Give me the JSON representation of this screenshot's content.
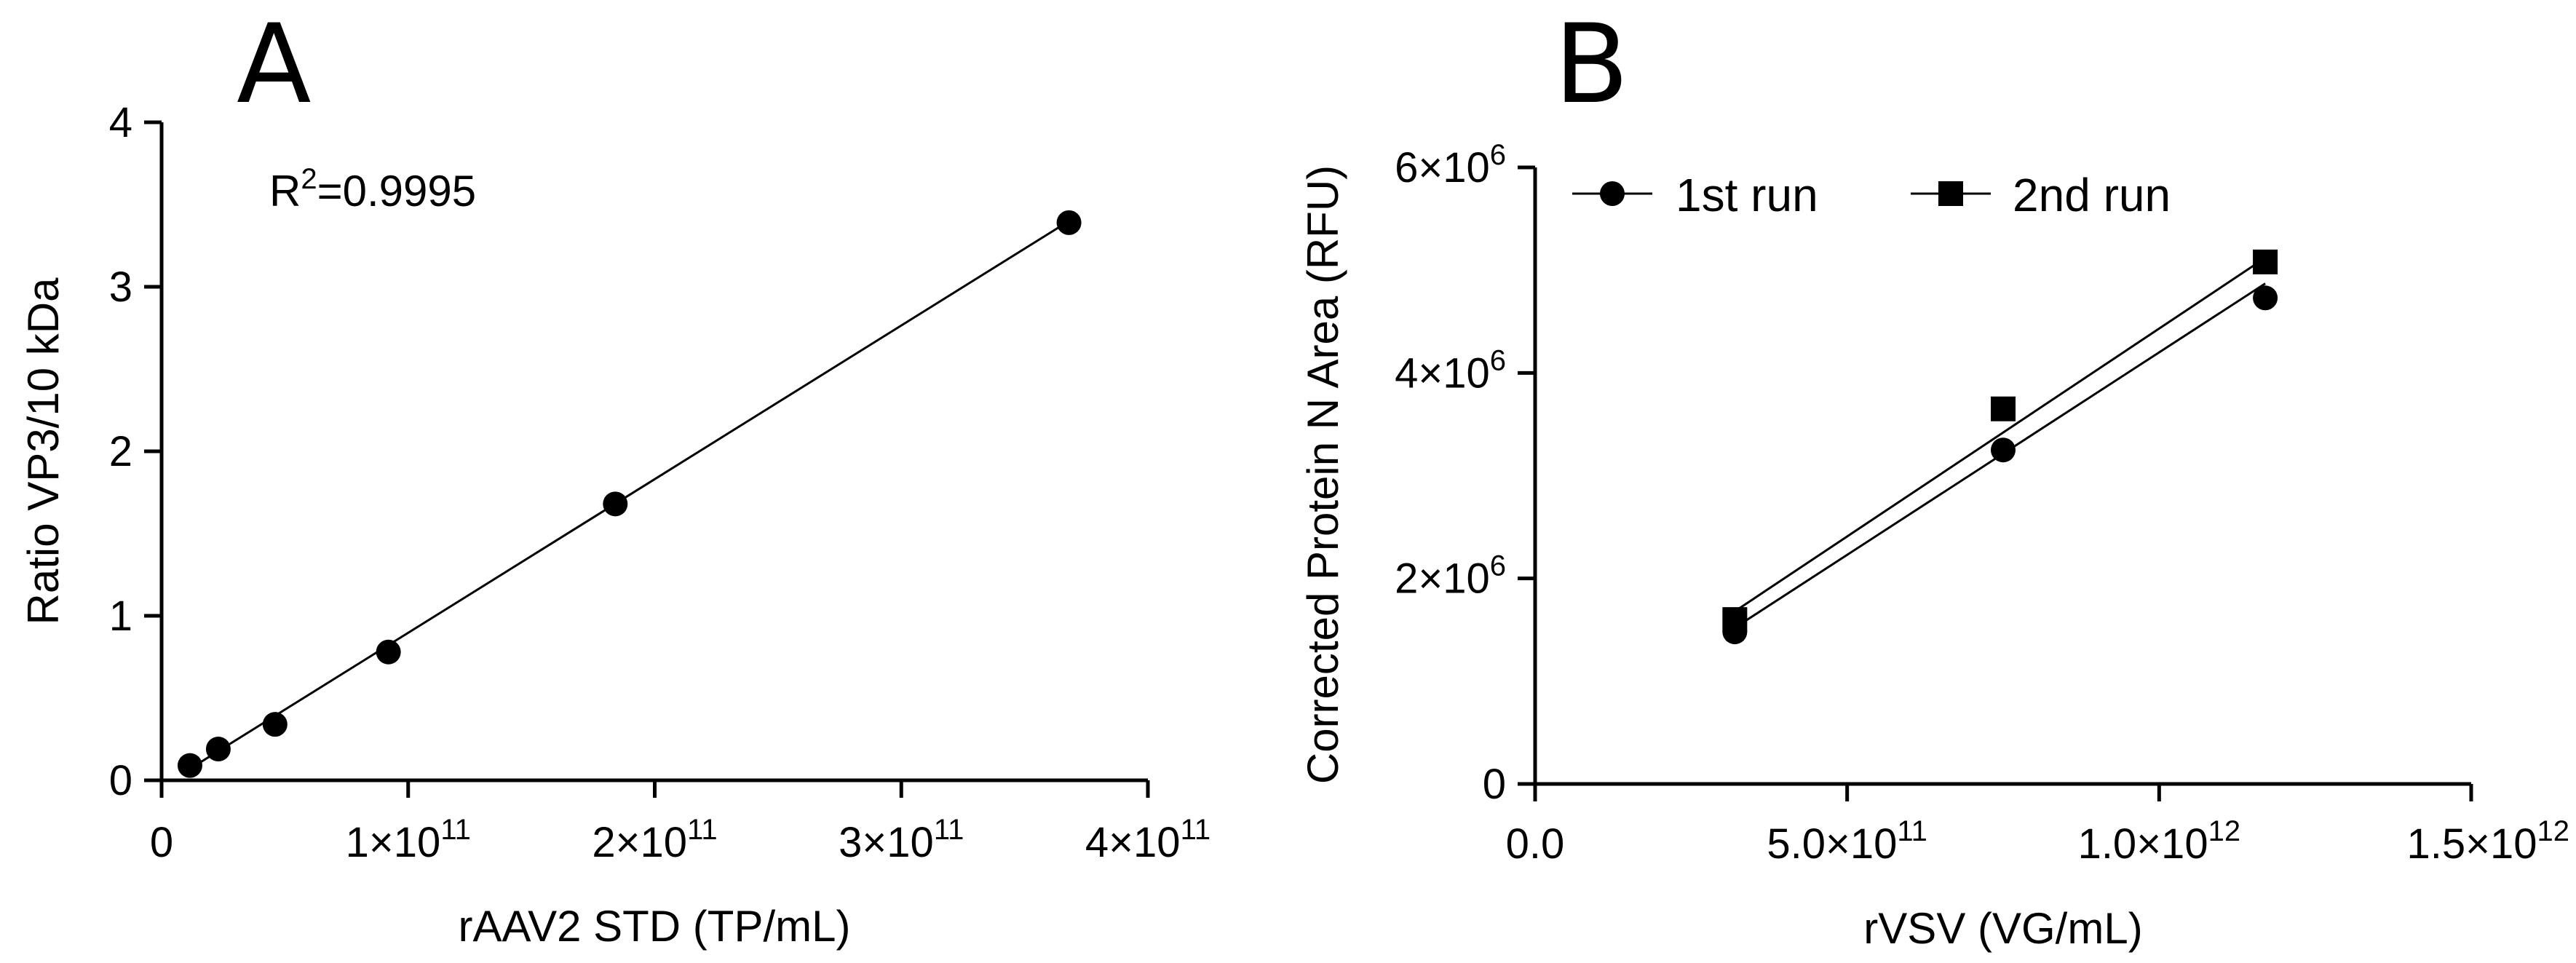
{
  "chart_data": [
    {
      "type": "scatter",
      "panel_label": "A",
      "xlabel": "rAAV2 STD (TP/mL)",
      "ylabel": "Ratio VP3/10 kDa",
      "annotation": {
        "base": "R",
        "sup": "2",
        "rest": "=0.9995"
      },
      "xlim": [
        0,
        400000000000.0
      ],
      "ylim": [
        0,
        4
      ],
      "x_ticks": [
        {
          "value": 0,
          "mantissa": "0",
          "exp": ""
        },
        {
          "value": 100000000000.0,
          "mantissa": "1×10",
          "exp": "11"
        },
        {
          "value": 200000000000.0,
          "mantissa": "2×10",
          "exp": "11"
        },
        {
          "value": 300000000000.0,
          "mantissa": "3×10",
          "exp": "11"
        },
        {
          "value": 400000000000.0,
          "mantissa": "4×10",
          "exp": "11"
        }
      ],
      "y_ticks": [
        {
          "value": 0,
          "label": "0"
        },
        {
          "value": 1,
          "label": "1"
        },
        {
          "value": 2,
          "label": "2"
        },
        {
          "value": 3,
          "label": "3"
        },
        {
          "value": 4,
          "label": "4"
        }
      ],
      "series": [
        {
          "name": "rAAV2 standard",
          "marker": "circle",
          "x": [
            11500000000.0,
            23000000000.0,
            46000000000.0,
            92000000000.0,
            184000000000.0,
            368000000000.0
          ],
          "y": [
            0.09,
            0.19,
            0.34,
            0.78,
            1.68,
            3.39
          ],
          "fit": {
            "x": [
              11500000000.0,
              368000000000.0
            ],
            "y": [
              0.07,
              3.4
            ]
          }
        }
      ]
    },
    {
      "type": "scatter",
      "panel_label": "B",
      "xlabel": "rVSV (VG/mL)",
      "ylabel": "Corrected Protein N Area (RFU)",
      "xlim": [
        0,
        1500000000000.0
      ],
      "ylim": [
        0,
        6000000.0
      ],
      "x_ticks": [
        {
          "value": 0,
          "mantissa": "0.0",
          "exp": ""
        },
        {
          "value": 500000000000.0,
          "mantissa": "5.0×10",
          "exp": "11"
        },
        {
          "value": 1000000000000.0,
          "mantissa": "1.0×10",
          "exp": "12"
        },
        {
          "value": 1500000000000.0,
          "mantissa": "1.5×10",
          "exp": "12"
        }
      ],
      "y_ticks": [
        {
          "value": 0,
          "mantissa": "0",
          "exp": ""
        },
        {
          "value": 2000000.0,
          "mantissa": "2×10",
          "exp": "6"
        },
        {
          "value": 4000000.0,
          "mantissa": "4×10",
          "exp": "6"
        },
        {
          "value": 6000000.0,
          "mantissa": "6×10",
          "exp": "6"
        }
      ],
      "legend_position": "top-left",
      "series": [
        {
          "name": "1st run",
          "marker": "circle",
          "x": [
            320000000000.0,
            750000000000.0,
            1170000000000.0
          ],
          "y": [
            1480000.0,
            3250000.0,
            4730000.0
          ],
          "fit": {
            "x": [
              320000000000.0,
              1170000000000.0
            ],
            "y": [
              1520000.0,
              4870000.0
            ]
          }
        },
        {
          "name": "2nd run",
          "marker": "square",
          "x": [
            320000000000.0,
            750000000000.0,
            1170000000000.0
          ],
          "y": [
            1600000.0,
            3650000.0,
            5080000.0
          ],
          "fit": {
            "x": [
              320000000000.0,
              1170000000000.0
            ],
            "y": [
              1680000.0,
              5120000.0
            ]
          }
        }
      ]
    }
  ]
}
